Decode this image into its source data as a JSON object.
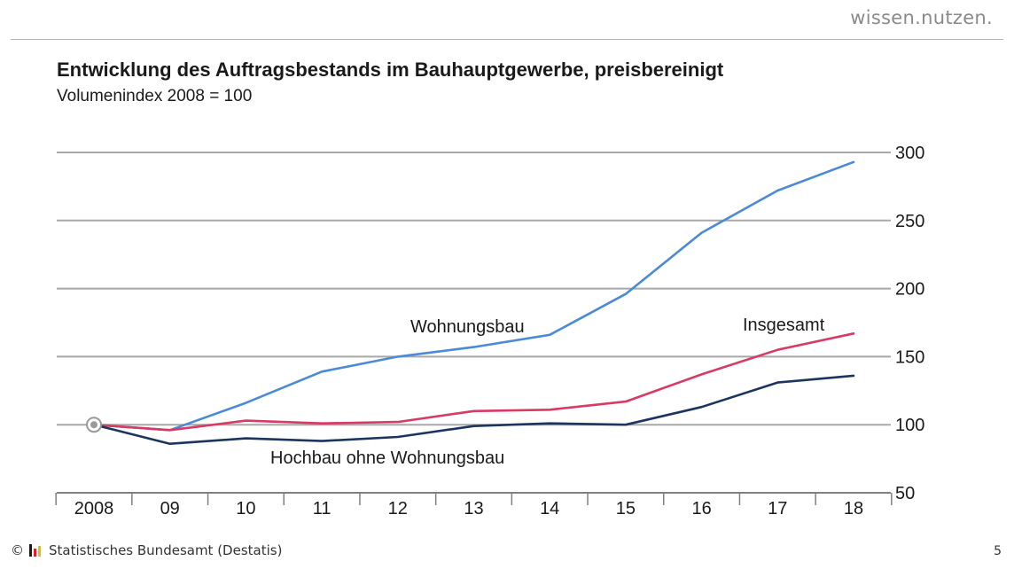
{
  "header": {
    "brand": "wissen.nutzen."
  },
  "footer": {
    "copyright": "©",
    "source": "Statistisches Bundesamt (Destatis)",
    "page_number": "5"
  },
  "chart_data": {
    "type": "line",
    "title": "Entwicklung des Auftragsbestands im Bauhauptgewerbe, preisbereinigt",
    "subtitle": "Volumenindex 2008 = 100",
    "categories": [
      "2008",
      "09",
      "10",
      "11",
      "12",
      "13",
      "14",
      "15",
      "16",
      "17",
      "18"
    ],
    "ylim": [
      50,
      300
    ],
    "yticks": [
      50,
      100,
      150,
      200,
      250,
      300
    ],
    "y_axis_position": "right",
    "grid": true,
    "series": [
      {
        "name": "Wohnungsbau",
        "color": "#4a8ad8",
        "values": [
          100,
          96,
          116,
          139,
          150,
          157,
          166,
          196,
          241,
          272,
          293
        ]
      },
      {
        "name": "Insgesamt",
        "color": "#d83a64",
        "values": [
          100,
          96,
          103,
          101,
          102,
          110,
          111,
          117,
          137,
          155,
          167
        ]
      },
      {
        "name": "Hochbau ohne Wohnungsbau",
        "color": "#1c3560",
        "values": [
          100,
          86,
          90,
          88,
          91,
          99,
          101,
          100,
          113,
          131,
          136
        ]
      }
    ]
  }
}
